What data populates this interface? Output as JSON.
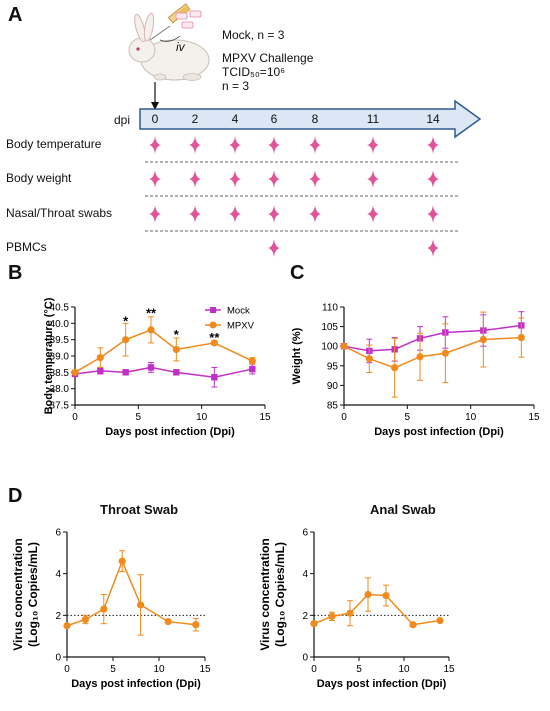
{
  "panel_labels": {
    "a": "A",
    "b": "B",
    "c": "C",
    "d": "D"
  },
  "schedule": {
    "iv_label": "iv",
    "mock_text": "Mock, n = 3",
    "challenge_line1": "MPXV Challenge",
    "challenge_line2": "TCID₅₀=10⁶",
    "challenge_line3": "n = 3",
    "dpi_label": "dpi",
    "days": [
      "0",
      "2",
      "4",
      "6",
      "8",
      "11",
      "14"
    ],
    "rows": [
      {
        "label": "Body temperature",
        "days": [
          "0",
          "2",
          "4",
          "6",
          "8",
          "11",
          "14"
        ]
      },
      {
        "label": "Body weight",
        "days": [
          "0",
          "2",
          "4",
          "6",
          "8",
          "11",
          "14"
        ]
      },
      {
        "label": "Nasal/Throat swabs",
        "days": [
          "0",
          "2",
          "4",
          "6",
          "8",
          "11",
          "14"
        ]
      },
      {
        "label": "PBMCs",
        "days": [
          "6",
          "14"
        ]
      }
    ],
    "marker_color": "#e0559a",
    "arrow_fill": "#dbe7f5",
    "arrow_stroke": "#2e5b8c"
  },
  "chart_data": [
    {
      "id": "B",
      "type": "line",
      "title": "",
      "xlabel": "Days post infection (Dpi)",
      "ylabel": "Body temperature (°C)",
      "xlim": [
        0,
        15
      ],
      "ylim": [
        37.5,
        40.5
      ],
      "xticks": [
        "0",
        "5",
        "10",
        "15"
      ],
      "yticks": [
        "37.5",
        "38.0",
        "38.5",
        "39.0",
        "39.5",
        "40.0",
        "40.5"
      ],
      "legend_position": "top-right",
      "series": [
        {
          "name": "Mock",
          "color": "#c030c8",
          "marker": "square",
          "x": [
            0,
            2,
            4,
            6,
            8,
            11,
            14
          ],
          "y": [
            38.45,
            38.55,
            38.5,
            38.65,
            38.5,
            38.35,
            38.6
          ],
          "err": [
            0.05,
            0.1,
            0.08,
            0.15,
            0.08,
            0.3,
            0.15
          ]
        },
        {
          "name": "MPXV",
          "color": "#f08a1c",
          "marker": "circle",
          "x": [
            0,
            2,
            4,
            6,
            8,
            11,
            14
          ],
          "y": [
            38.5,
            38.95,
            39.5,
            39.8,
            39.2,
            39.4,
            38.85
          ],
          "err": [
            0.05,
            0.3,
            0.5,
            0.4,
            0.35,
            0.05,
            0.1
          ]
        }
      ],
      "annotations": [
        {
          "x": 4,
          "y": 40.05,
          "text": "*"
        },
        {
          "x": 6,
          "y": 40.3,
          "text": "**"
        },
        {
          "x": 8,
          "y": 39.65,
          "text": "*"
        },
        {
          "x": 11,
          "y": 39.55,
          "text": "**"
        }
      ]
    },
    {
      "id": "C",
      "type": "line",
      "title": "",
      "xlabel": "Days post infection (Dpi)",
      "ylabel": "Weight (%)",
      "xlim": [
        0,
        15
      ],
      "ylim": [
        85,
        110
      ],
      "xticks": [
        "0",
        "5",
        "10",
        "15"
      ],
      "yticks": [
        "85",
        "90",
        "95",
        "100",
        "105",
        "110"
      ],
      "series": [
        {
          "name": "Mock",
          "color": "#c030c8",
          "marker": "square",
          "x": [
            0,
            2,
            4,
            6,
            8,
            11,
            14
          ],
          "y": [
            100,
            98.8,
            99.2,
            102,
            103.5,
            104,
            105.3
          ],
          "err": [
            0.3,
            3,
            3,
            3,
            4,
            4,
            3.5
          ]
        },
        {
          "name": "MPXV",
          "color": "#f08a1c",
          "marker": "circle",
          "x": [
            0,
            2,
            4,
            6,
            8,
            11,
            14
          ],
          "y": [
            100,
            96.8,
            94.5,
            97.3,
            98.2,
            101.7,
            102.2
          ],
          "err": [
            0.3,
            3.5,
            7.5,
            6,
            7.5,
            7,
            5
          ]
        }
      ]
    },
    {
      "id": "D1",
      "type": "line",
      "title": "Throat Swab",
      "xlabel": "Days post infection (Dpi)",
      "ylabel": "Virus concentration (Log₁₀ Copies/mL)",
      "xlim": [
        0,
        15
      ],
      "ylim": [
        0,
        6
      ],
      "xticks": [
        "0",
        "5",
        "10",
        "15"
      ],
      "yticks": [
        "0",
        "2",
        "4",
        "6"
      ],
      "threshold": 2,
      "series": [
        {
          "name": "",
          "color": "#f08a1c",
          "marker": "circle",
          "x": [
            0,
            2,
            4,
            6,
            8,
            11,
            14
          ],
          "y": [
            1.5,
            1.8,
            2.3,
            4.6,
            2.5,
            1.7,
            1.55
          ],
          "err": [
            0.05,
            0.2,
            0.7,
            0.5,
            1.45,
            0.05,
            0.3
          ]
        }
      ]
    },
    {
      "id": "D2",
      "type": "line",
      "title": "Anal Swab",
      "xlabel": "Days post infection (Dpi)",
      "ylabel": "Virus concentration (Log₁₀ Copies/mL)",
      "xlim": [
        0,
        15
      ],
      "ylim": [
        0,
        6
      ],
      "xticks": [
        "0",
        "5",
        "10",
        "15"
      ],
      "yticks": [
        "0",
        "2",
        "4",
        "6"
      ],
      "threshold": 2,
      "series": [
        {
          "name": "",
          "color": "#f08a1c",
          "marker": "circle",
          "x": [
            0,
            2,
            4,
            6,
            8,
            11,
            14
          ],
          "y": [
            1.6,
            1.95,
            2.1,
            3.0,
            2.95,
            1.55,
            1.75
          ],
          "err": [
            0.1,
            0.2,
            0.6,
            0.8,
            0.5,
            0.05,
            0.05
          ]
        }
      ]
    }
  ]
}
